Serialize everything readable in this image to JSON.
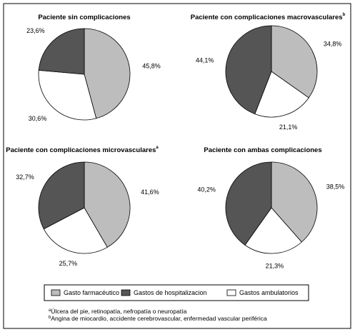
{
  "chart_data": [
    {
      "type": "pie",
      "title": "Paciente sin complicaciones",
      "values": [
        45.8,
        30.6,
        23.6
      ],
      "value_labels": [
        "45,8%",
        "30,6%",
        "23,6%"
      ]
    },
    {
      "type": "pie",
      "title": "Paciente con complicaciones macrovasculares",
      "title_note": "b",
      "values": [
        34.8,
        21.1,
        44.1
      ],
      "value_labels": [
        "34,8%",
        "21,1%",
        "44,1%"
      ]
    },
    {
      "type": "pie",
      "title": "Paciente con complicaciones microvasculares",
      "title_note": "a",
      "values": [
        41.6,
        25.7,
        32.7
      ],
      "value_labels": [
        "41,6%",
        "25,7%",
        "32,7%"
      ]
    },
    {
      "type": "pie",
      "title": "Paciente con ambas complicaciones",
      "values": [
        38.5,
        21.3,
        40.2
      ],
      "value_labels": [
        "38,5%",
        "21,3%",
        "40,2%"
      ]
    }
  ],
  "legend": {
    "labels": [
      "Gasto farmacéutico",
      "Gastos ambulatorios",
      "Gastos de hospitalizacion"
    ],
    "colors": [
      "#bdbdbd",
      "#ffffff",
      "#555555"
    ]
  },
  "footnotes": [
    {
      "mark": "a",
      "text": "Úlcera del pie, retinopatía, nefropatía o neuropatía"
    },
    {
      "mark": "b",
      "text": "Angina de miocardio, accidente cerebrovascular, enfermedad vascular periférica"
    }
  ]
}
